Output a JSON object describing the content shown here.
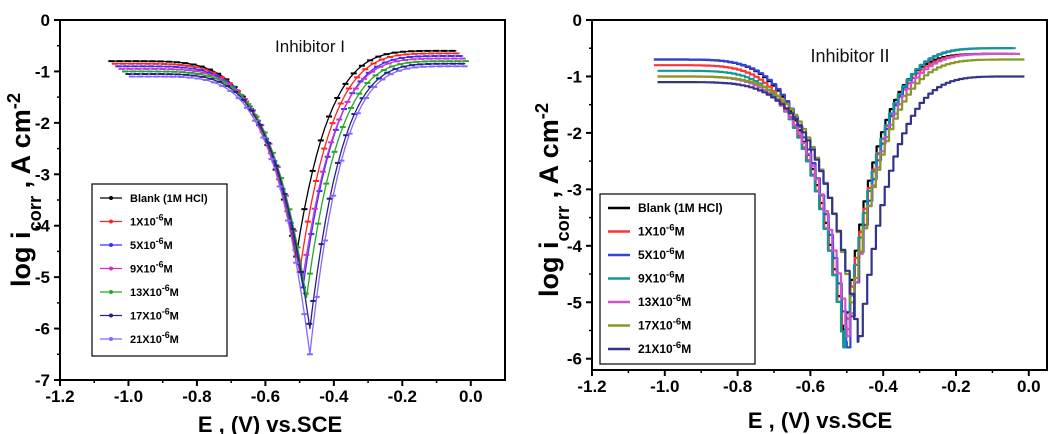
{
  "chart_data": [
    {
      "type": "line",
      "title": "Inhibitor I",
      "xlabel": "E , (V) vs.SCE",
      "ylabel_main": "log i",
      "ylabel_sub": "corr",
      "ylabel_tail": " , A cm",
      "ylabel_sup": "-2",
      "xlim": [
        -1.2,
        0.1
      ],
      "ylim": [
        -7,
        0
      ],
      "xticks": [
        "-1.2",
        "-1.0",
        "-0.8",
        "-0.6",
        "-0.4",
        "-0.2",
        "0.0"
      ],
      "yticks": [
        "0",
        "-1",
        "-2",
        "-3",
        "-4",
        "-5",
        "-6",
        "-7"
      ],
      "style": "step-markers",
      "legend_position": "lower-left",
      "series": [
        {
          "name": "Blank (1M HCl)",
          "label_main": "Blank (1M HCl)",
          "label_sup": "",
          "label_tail": "",
          "color": "#000000",
          "e_left": -1.05,
          "y_left": -0.8,
          "e_corr": -0.51,
          "y_corr": -4.6,
          "e_right": -0.04,
          "y_right": -0.6
        },
        {
          "name": "1X10-6M",
          "label_main": "1X10",
          "label_sup": "-6",
          "label_tail": "M",
          "color": "#ff2222",
          "e_left": -1.04,
          "y_left": -0.85,
          "e_corr": -0.5,
          "y_corr": -4.9,
          "e_right": -0.03,
          "y_right": -0.65
        },
        {
          "name": "5X10-6M",
          "label_main": "5X10",
          "label_sup": "-6",
          "label_tail": "M",
          "color": "#3333ff",
          "e_left": -1.03,
          "y_left": -0.9,
          "e_corr": -0.49,
          "y_corr": -5.2,
          "e_right": -0.02,
          "y_right": -0.7
        },
        {
          "name": "9X10-6M",
          "label_main": "9X10",
          "label_sup": "-6",
          "label_tail": "M",
          "color": "#cc33cc",
          "e_left": -1.02,
          "y_left": -0.95,
          "e_corr": -0.49,
          "y_corr": -5.0,
          "e_right": -0.02,
          "y_right": -0.75
        },
        {
          "name": "13X10-6M",
          "label_main": "13X10",
          "label_sup": "-6",
          "label_tail": "M",
          "color": "#22aa22",
          "e_left": -1.01,
          "y_left": -1.0,
          "e_corr": -0.48,
          "y_corr": -5.4,
          "e_right": -0.01,
          "y_right": -0.8
        },
        {
          "name": "17X10-6M",
          "label_main": "17X10",
          "label_sup": "-6",
          "label_tail": "M",
          "color": "#222288",
          "e_left": -1.0,
          "y_left": -1.05,
          "e_corr": -0.47,
          "y_corr": -6.0,
          "e_right": -0.01,
          "y_right": -0.85
        },
        {
          "name": "21X10-6M",
          "label_main": "21X10",
          "label_sup": "-6",
          "label_tail": "M",
          "color": "#8866ff",
          "e_left": -0.99,
          "y_left": -1.1,
          "e_corr": -0.47,
          "y_corr": -6.5,
          "e_right": -0.01,
          "y_right": -0.9
        }
      ]
    },
    {
      "type": "line",
      "title": "Inhibitor II",
      "xlabel": "E , (V) vs.SCE",
      "ylabel_main": "log i",
      "ylabel_sub": "corr",
      "ylabel_tail": " , A cm",
      "ylabel_sup": "-2",
      "xlim": [
        -1.2,
        0.05
      ],
      "ylim": [
        -6.2,
        0
      ],
      "xticks": [
        "-1.2",
        "-1.0",
        "-0.8",
        "-0.6",
        "-0.4",
        "-0.2",
        "0.0"
      ],
      "yticks": [
        "0",
        "-1",
        "-2",
        "-3",
        "-4",
        "-5",
        "-6"
      ],
      "style": "step-lines",
      "legend_position": "lower-left",
      "series": [
        {
          "name": "Blank (1M HCl)",
          "label_main": "Blank (1M HCl)",
          "label_sup": "",
          "label_tail": "",
          "color": "#000000",
          "e_left": -1.03,
          "y_left": -0.7,
          "e_corr": -0.51,
          "y_corr": -5.6,
          "e_right": -0.05,
          "y_right": -0.6
        },
        {
          "name": "1X10-6M",
          "label_main": "1X10",
          "label_sup": "-6",
          "label_tail": "M",
          "color": "#ff3333",
          "e_left": -1.03,
          "y_left": -0.8,
          "e_corr": -0.51,
          "y_corr": -5.7,
          "e_right": -0.03,
          "y_right": -0.6
        },
        {
          "name": "5X10-6M",
          "label_main": "5X10",
          "label_sup": "-6",
          "label_tail": "M",
          "color": "#3344dd",
          "e_left": -1.03,
          "y_left": -0.7,
          "e_corr": -0.5,
          "y_corr": -5.8,
          "e_right": -0.04,
          "y_right": -0.5
        },
        {
          "name": "9X10-6M",
          "label_main": "9X10",
          "label_sup": "-6",
          "label_tail": "M",
          "color": "#119999",
          "e_left": -1.02,
          "y_left": -0.9,
          "e_corr": -0.51,
          "y_corr": -5.8,
          "e_right": -0.03,
          "y_right": -0.5
        },
        {
          "name": "13X10-6M",
          "label_main": "13X10",
          "label_sup": "-6",
          "label_tail": "M",
          "color": "#cc55cc",
          "e_left": -1.02,
          "y_left": -1.0,
          "e_corr": -0.5,
          "y_corr": -5.6,
          "e_right": -0.02,
          "y_right": -0.6
        },
        {
          "name": "17X10-6M",
          "label_main": "17X10",
          "label_sup": "-6",
          "label_tail": "M",
          "color": "#889922",
          "e_left": -1.02,
          "y_left": -1.0,
          "e_corr": -0.49,
          "y_corr": -5.0,
          "e_right": -0.01,
          "y_right": -0.7
        },
        {
          "name": "21X10-6M",
          "label_main": "21X10",
          "label_sup": "-6",
          "label_tail": "M",
          "color": "#333388",
          "e_left": -1.02,
          "y_left": -1.1,
          "e_corr": -0.47,
          "y_corr": -5.7,
          "e_right": -0.01,
          "y_right": -1.0
        }
      ]
    }
  ]
}
